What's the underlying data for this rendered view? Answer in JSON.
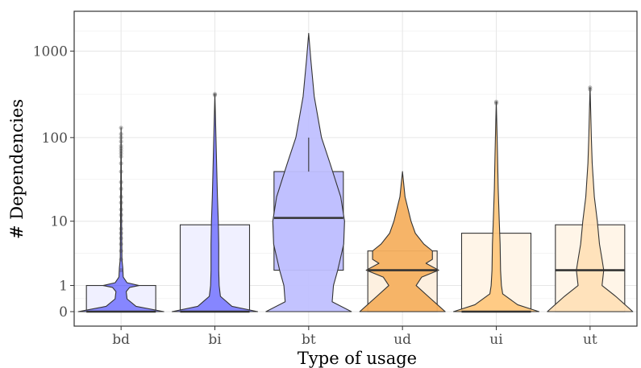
{
  "chart_data": {
    "type": "violin",
    "xlabel": "Type of usage",
    "ylabel": "# Dependencies",
    "y_scale": "pseudo-log",
    "ylim": [
      0,
      2000
    ],
    "y_ticks": [
      {
        "value": 0,
        "label": "0"
      },
      {
        "value": 1,
        "label": "1"
      },
      {
        "value": 10,
        "label": "10"
      },
      {
        "value": 100,
        "label": "100"
      },
      {
        "value": 1000,
        "label": "1000"
      }
    ],
    "grid": true,
    "categories": [
      "bd",
      "bi",
      "bt",
      "ud",
      "ui",
      "ut"
    ],
    "groups": [
      {
        "category": "bd",
        "fill": "#8080ff",
        "box_fill": "#f0f0ff",
        "min": 0,
        "q1": 0,
        "median": 0,
        "q3": 1,
        "whisker_high": 1,
        "max": 130,
        "outliers": [
          2,
          3,
          4,
          5,
          6,
          7,
          8,
          10,
          12,
          14,
          17,
          20,
          25,
          30,
          40,
          50,
          60,
          65,
          70,
          75,
          80,
          90,
          100,
          110,
          130
        ],
        "profile": [
          [
            0,
            1.0
          ],
          [
            0.15,
            0.35
          ],
          [
            0.4,
            0.14
          ],
          [
            0.7,
            0.12
          ],
          [
            0.9,
            0.2
          ],
          [
            1,
            0.42
          ],
          [
            1.15,
            0.14
          ],
          [
            1.5,
            0.05
          ],
          [
            2.2,
            0.04
          ],
          [
            3,
            0.02
          ],
          [
            10,
            0.012
          ],
          [
            40,
            0.006
          ],
          [
            130,
            0.0
          ]
        ]
      },
      {
        "category": "bi",
        "fill": "#8080ff",
        "box_fill": "#f0f0ff",
        "min": 0,
        "q1": 0,
        "median": 0,
        "q3": 9,
        "whisker_high": 9,
        "max": 320,
        "outliers": [
          310,
          320
        ],
        "profile": [
          [
            0,
            1.0
          ],
          [
            0.15,
            0.4
          ],
          [
            0.5,
            0.13
          ],
          [
            1,
            0.1
          ],
          [
            2,
            0.09
          ],
          [
            5,
            0.09
          ],
          [
            10,
            0.08
          ],
          [
            20,
            0.06
          ],
          [
            40,
            0.045
          ],
          [
            80,
            0.03
          ],
          [
            160,
            0.015
          ],
          [
            320,
            0.0
          ]
        ]
      },
      {
        "category": "bt",
        "fill": "#c0c0ff",
        "box_fill": "#c0c0ff",
        "min": 0,
        "q1": 2,
        "median": 11,
        "q3": 40,
        "whisker_high": 100,
        "max": 1600,
        "outliers": [],
        "profile": [
          [
            0,
            1.0
          ],
          [
            0.3,
            0.55
          ],
          [
            1,
            0.58
          ],
          [
            2,
            0.68
          ],
          [
            5,
            0.82
          ],
          [
            10,
            0.84
          ],
          [
            20,
            0.75
          ],
          [
            50,
            0.5
          ],
          [
            100,
            0.3
          ],
          [
            300,
            0.13
          ],
          [
            800,
            0.05
          ],
          [
            1600,
            0.0
          ]
        ]
      },
      {
        "category": "ud",
        "fill": "#f5b060",
        "box_fill": "#fdf0e0",
        "min": 0,
        "q1": 0,
        "median": 2,
        "q3": 4,
        "whisker_high": 4,
        "max": 40,
        "outliers": [],
        "profile": [
          [
            0,
            1.0
          ],
          [
            0.5,
            0.6
          ],
          [
            1,
            0.32
          ],
          [
            1.5,
            0.45
          ],
          [
            2,
            0.85
          ],
          [
            2.6,
            0.55
          ],
          [
            3,
            0.7
          ],
          [
            4,
            0.7
          ],
          [
            5,
            0.5
          ],
          [
            7,
            0.3
          ],
          [
            10,
            0.2
          ],
          [
            20,
            0.06
          ],
          [
            40,
            0.0
          ]
        ]
      },
      {
        "category": "ui",
        "fill": "#ffc880",
        "box_fill": "#fff5e8",
        "min": 0,
        "q1": 0,
        "median": 0,
        "q3": 7,
        "whisker_high": 7,
        "max": 260,
        "outliers": [
          250,
          260
        ],
        "profile": [
          [
            0,
            1.0
          ],
          [
            0.2,
            0.5
          ],
          [
            0.6,
            0.15
          ],
          [
            1,
            0.12
          ],
          [
            2,
            0.1
          ],
          [
            5,
            0.09
          ],
          [
            10,
            0.07
          ],
          [
            25,
            0.045
          ],
          [
            60,
            0.03
          ],
          [
            130,
            0.015
          ],
          [
            260,
            0.0
          ]
        ]
      },
      {
        "category": "ut",
        "fill": "#ffe0b8",
        "box_fill": "#fff5e8",
        "min": 0,
        "q1": 0,
        "median": 2,
        "q3": 9,
        "whisker_high": 9,
        "max": 380,
        "outliers": [
          360,
          380
        ],
        "profile": [
          [
            0,
            1.0
          ],
          [
            0.5,
            0.6
          ],
          [
            1,
            0.28
          ],
          [
            2,
            0.32
          ],
          [
            3,
            0.28
          ],
          [
            5,
            0.22
          ],
          [
            10,
            0.17
          ],
          [
            20,
            0.1
          ],
          [
            50,
            0.05
          ],
          [
            100,
            0.03
          ],
          [
            200,
            0.015
          ],
          [
            380,
            0.0
          ]
        ]
      }
    ]
  }
}
